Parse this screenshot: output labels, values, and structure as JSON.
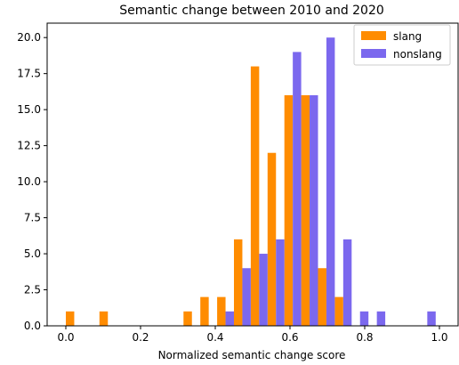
{
  "chart_data": {
    "type": "bar",
    "title": "Semantic change between 2010 and 2020",
    "xlabel": "Normalized semantic change score",
    "ylabel": "",
    "xlim": [
      -0.05,
      1.05
    ],
    "ylim": [
      0,
      21
    ],
    "xticks": [
      "0.0",
      "0.2",
      "0.4",
      "0.6",
      "0.8",
      "1.0"
    ],
    "xtick_values": [
      0.0,
      0.2,
      0.4,
      0.6,
      0.8,
      1.0
    ],
    "yticks": [
      "0.0",
      "2.5",
      "5.0",
      "7.5",
      "10.0",
      "12.5",
      "15.0",
      "17.5",
      "20.0"
    ],
    "ytick_values": [
      0,
      2.5,
      5,
      7.5,
      10,
      12.5,
      15,
      17.5,
      20
    ],
    "grid": false,
    "legend_position": "top-right",
    "bin_edges": [
      0.0,
      0.045,
      0.09,
      0.135,
      0.18,
      0.225,
      0.27,
      0.315,
      0.36,
      0.405,
      0.45,
      0.495,
      0.54,
      0.585,
      0.63,
      0.675,
      0.72,
      0.765,
      0.81,
      0.855,
      0.9,
      0.945,
      0.99
    ],
    "series": [
      {
        "name": "slang",
        "color": "#ff8c00",
        "values": [
          1,
          0,
          1,
          0,
          0,
          0,
          0,
          1,
          2,
          2,
          6,
          18,
          12,
          16,
          16,
          4,
          2,
          0,
          0,
          0,
          0,
          0
        ]
      },
      {
        "name": "nonslang",
        "color": "#7b68ee",
        "values": [
          0,
          0,
          0,
          0,
          0,
          0,
          0,
          0,
          0,
          1,
          4,
          5,
          6,
          19,
          16,
          20,
          6,
          1,
          1,
          0,
          0,
          1
        ]
      }
    ]
  }
}
